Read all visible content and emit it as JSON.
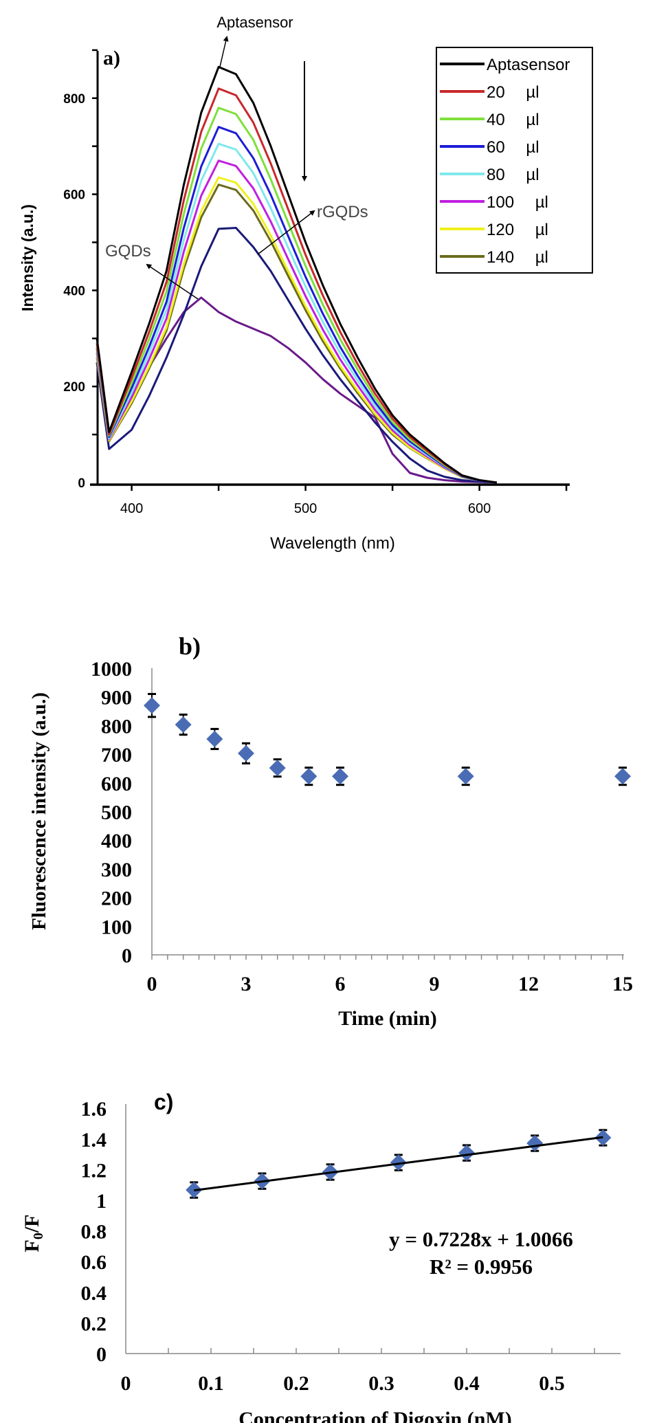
{
  "chart_data": [
    {
      "panel_label": "a)",
      "type": "line",
      "xlabel": "Wavelength (nm)",
      "ylabel": "Intensity (a.u.)",
      "xlim": [
        380,
        650
      ],
      "ylim": [
        0,
        900
      ],
      "xticks": [
        400,
        500,
        600
      ],
      "yticks": [
        0,
        200,
        400,
        600,
        800
      ],
      "grid": false,
      "legend_position": "top-right",
      "x": [
        380,
        387,
        400,
        410,
        420,
        430,
        440,
        450,
        460,
        470,
        480,
        490,
        500,
        510,
        520,
        530,
        540,
        550,
        560,
        570,
        580,
        590,
        600,
        610
      ],
      "series": [
        {
          "name": "Aptasensor",
          "in_legend": true,
          "color": "#000000",
          "values": [
            300,
            105,
            230,
            330,
            440,
            620,
            770,
            865,
            850,
            790,
            700,
            600,
            500,
            410,
            330,
            260,
            195,
            140,
            100,
            70,
            40,
            15,
            5,
            0
          ]
        },
        {
          "name": "20 µl",
          "in_legend": true,
          "color": "#c8282a",
          "values": [
            290,
            100,
            218,
            313,
            417,
            588,
            730,
            820,
            806,
            749,
            664,
            569,
            474,
            389,
            313,
            246,
            185,
            133,
            95,
            66,
            38,
            14,
            5,
            0
          ]
        },
        {
          "name": "40 µl",
          "in_legend": true,
          "color": "#7ee03a",
          "values": [
            285,
            98,
            207,
            298,
            397,
            559,
            695,
            780,
            767,
            713,
            631,
            541,
            451,
            370,
            298,
            235,
            176,
            126,
            90,
            63,
            36,
            14,
            5,
            0
          ]
        },
        {
          "name": "60 µl",
          "in_legend": true,
          "color": "#1c1cd8",
          "values": [
            280,
            95,
            197,
            282,
            376,
            530,
            658,
            740,
            727,
            675,
            599,
            513,
            428,
            351,
            282,
            222,
            167,
            120,
            86,
            60,
            34,
            13,
            4,
            0
          ]
        },
        {
          "name": "80 µl",
          "in_legend": true,
          "color": "#80e8ec",
          "values": [
            275,
            92,
            187,
            269,
            359,
            505,
            628,
            705,
            693,
            644,
            571,
            489,
            408,
            334,
            269,
            212,
            159,
            114,
            82,
            57,
            33,
            12,
            4,
            0
          ]
        },
        {
          "name": "100 µl",
          "in_legend": true,
          "color": "#c020e0",
          "values": [
            270,
            90,
            178,
            256,
            341,
            481,
            597,
            670,
            659,
            612,
            543,
            465,
            388,
            318,
            256,
            202,
            151,
            109,
            78,
            54,
            31,
            12,
            4,
            0
          ]
        },
        {
          "name": "120 µl",
          "in_legend": true,
          "color": "#f0f01c",
          "values": [
            265,
            88,
            169,
            242,
            323,
            455,
            565,
            635,
            624,
            580,
            514,
            440,
            367,
            301,
            242,
            191,
            143,
            103,
            73,
            51,
            29,
            11,
            4,
            0
          ]
        },
        {
          "name": "140 µl",
          "in_legend": true,
          "color": "#6b6b1c",
          "values": [
            260,
            86,
            165,
            237,
            316,
            445,
            552,
            620,
            609,
            566,
            502,
            430,
            359,
            294,
            237,
            186,
            140,
            100,
            72,
            50,
            29,
            11,
            4,
            0
          ]
        },
        {
          "name": "rGQDs",
          "in_legend": false,
          "color": "#1a1a7a",
          "values": [
            250,
            70,
            110,
            180,
            260,
            350,
            450,
            528,
            530,
            490,
            440,
            380,
            320,
            265,
            215,
            170,
            125,
            85,
            50,
            25,
            12,
            5,
            2,
            0
          ]
        },
        {
          "name": "GQDs",
          "in_legend": false,
          "color": "#6a1a8a",
          "values": [
            250,
            90,
            170,
            240,
            300,
            355,
            385,
            355,
            335,
            320,
            305,
            280,
            250,
            215,
            185,
            160,
            135,
            60,
            20,
            10,
            5,
            2,
            1,
            0
          ]
        }
      ],
      "annotations": {
        "top": "Aptasensor",
        "rgqds": "rGQDs",
        "gqds": "GQDs"
      }
    },
    {
      "panel_label": "b)",
      "type": "scatter",
      "xlabel": "Time (min)",
      "ylabel": "Fluorescence intensity (a.u.)",
      "xlim": [
        0,
        15
      ],
      "ylim": [
        0,
        1000
      ],
      "xticks": [
        "0",
        "3",
        "6",
        "9",
        "12",
        "15"
      ],
      "yticks": [
        "0",
        "100",
        "200",
        "300",
        "400",
        "500",
        "600",
        "700",
        "800",
        "900",
        "1000"
      ],
      "grid": false,
      "marker_color": "#4a6cb4",
      "x": [
        0,
        1,
        2,
        3,
        4,
        5,
        6,
        10,
        15
      ],
      "y": [
        870,
        803,
        753,
        703,
        652,
        623,
        623,
        623,
        623
      ],
      "error": [
        40,
        35,
        35,
        35,
        30,
        30,
        30,
        30,
        30
      ]
    },
    {
      "panel_label": "c)",
      "type": "scatter",
      "xlabel": "Concentration of Digoxin (nM)",
      "ylabel": {
        "main": "F",
        "sub": "0",
        "rest": "/F"
      },
      "xlim": [
        0,
        0.58
      ],
      "ylim": [
        0,
        1.6
      ],
      "xticks": [
        "0",
        "0.1",
        "0.2",
        "0.3",
        "0.4",
        "0.5"
      ],
      "yticks": [
        "0",
        "0.2",
        "0.4",
        "0.6",
        "0.8",
        "1",
        "1.2",
        "1.4",
        "1.6"
      ],
      "grid": false,
      "marker_color": "#4a6cb4",
      "x": [
        0.08,
        0.16,
        0.24,
        0.32,
        0.4,
        0.48,
        0.56
      ],
      "y": [
        1.067,
        1.125,
        1.184,
        1.246,
        1.309,
        1.372,
        1.408
      ],
      "error": [
        0.05,
        0.05,
        0.05,
        0.05,
        0.05,
        0.05,
        0.05
      ],
      "trendline": {
        "slope": 0.7228,
        "intercept": 1.0066
      },
      "equation": "y = 0.7228x + 1.0066",
      "r_squared": "R² = 0.9956"
    }
  ]
}
